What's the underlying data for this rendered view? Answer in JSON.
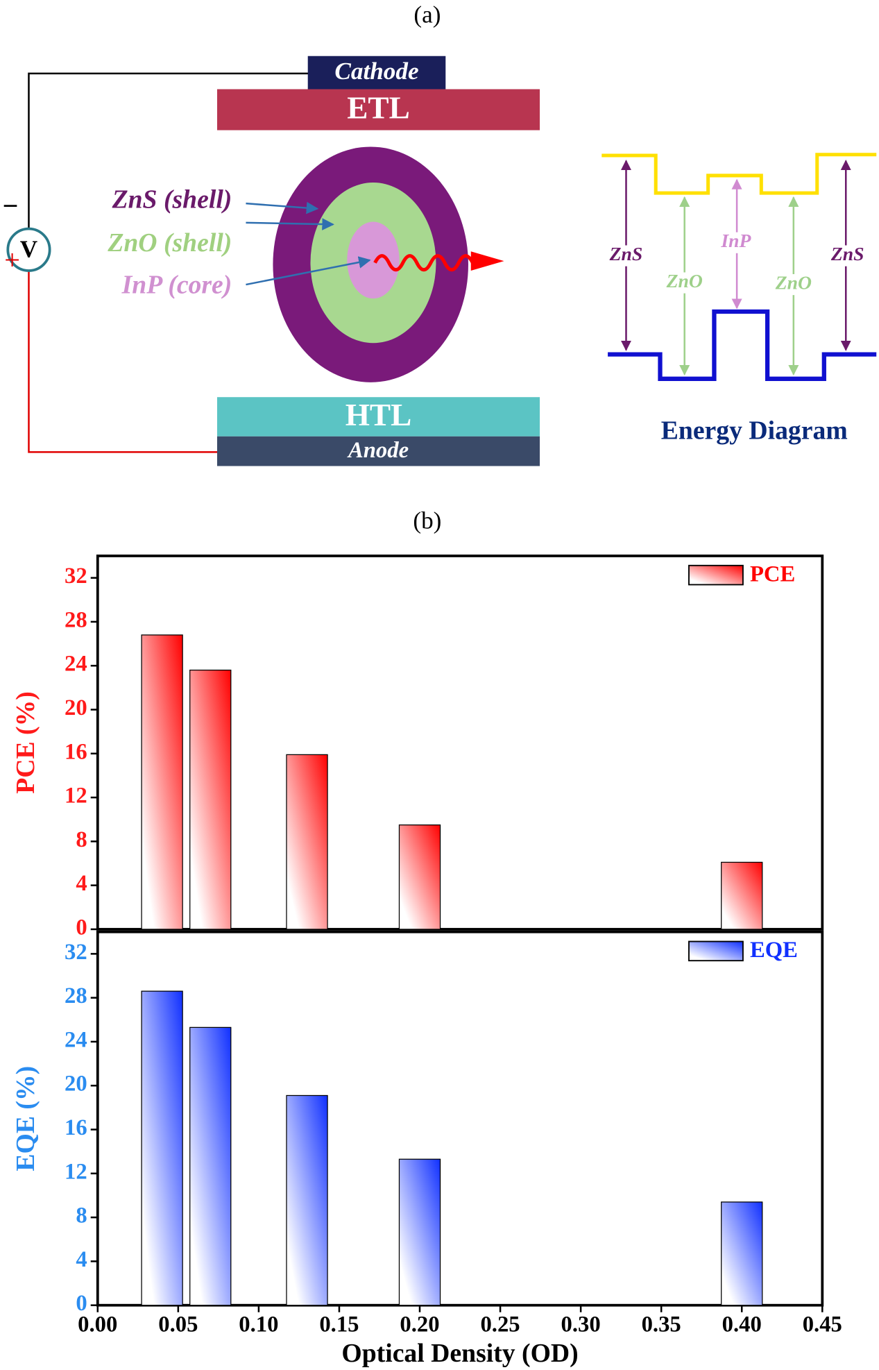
{
  "diagram": {
    "panel_label": "(a)",
    "cathode": "Cathode",
    "etl": "ETL",
    "htl": "HTL",
    "anode": "Anode",
    "voltmeter": "V",
    "minus": "−",
    "plus": "+",
    "layers": [
      "ZnS (shell)",
      "ZnO (shell)",
      "InP (core)"
    ],
    "energy_diagram": {
      "title": "Energy Diagram",
      "labels": [
        "ZnS",
        "ZnO",
        "InP",
        "ZnO",
        "ZnS"
      ]
    }
  },
  "chart_panel_label": "(b)",
  "chart_data": [
    {
      "type": "bar",
      "ylabel": "PCE (%)",
      "ylabel_color": "#ff1a1a",
      "x": [
        0.04,
        0.07,
        0.13,
        0.2,
        0.4
      ],
      "series": [
        {
          "name": "PCE",
          "color": "#ff0000",
          "values": [
            26.8,
            23.6,
            15.9,
            9.5,
            6.1
          ]
        }
      ],
      "xlim": [
        0,
        0.45
      ],
      "ylim": [
        0,
        34
      ],
      "yticks": [
        0,
        4,
        8,
        12,
        16,
        20,
        24,
        28,
        32
      ],
      "legend": "upper right"
    },
    {
      "type": "bar",
      "ylabel": "EQE (%)",
      "ylabel_color": "#2a8cf0",
      "xlabel": "Optical Density (OD)",
      "x": [
        0.04,
        0.07,
        0.13,
        0.2,
        0.4
      ],
      "series": [
        {
          "name": "EQE",
          "color": "#1030ff",
          "values": [
            28.6,
            25.3,
            19.1,
            13.3,
            9.4
          ]
        }
      ],
      "xlim": [
        0,
        0.45
      ],
      "ylim": [
        0,
        34
      ],
      "yticks": [
        0,
        4,
        8,
        12,
        16,
        20,
        24,
        28,
        32
      ],
      "xticks": [
        {
          "value": 0,
          "label": "0.00"
        },
        {
          "value": 0.05,
          "label": "0.05"
        },
        {
          "value": 0.1,
          "label": "0.10"
        },
        {
          "value": 0.15,
          "label": "0.15"
        },
        {
          "value": 0.2,
          "label": "0.20"
        },
        {
          "value": 0.25,
          "label": "0.25"
        },
        {
          "value": 0.3,
          "label": "0.30"
        },
        {
          "value": 0.35,
          "label": "0.35"
        },
        {
          "value": 0.4,
          "label": "0.40"
        },
        {
          "value": 0.45,
          "label": "0.45"
        }
      ],
      "legend": "upper right"
    }
  ]
}
